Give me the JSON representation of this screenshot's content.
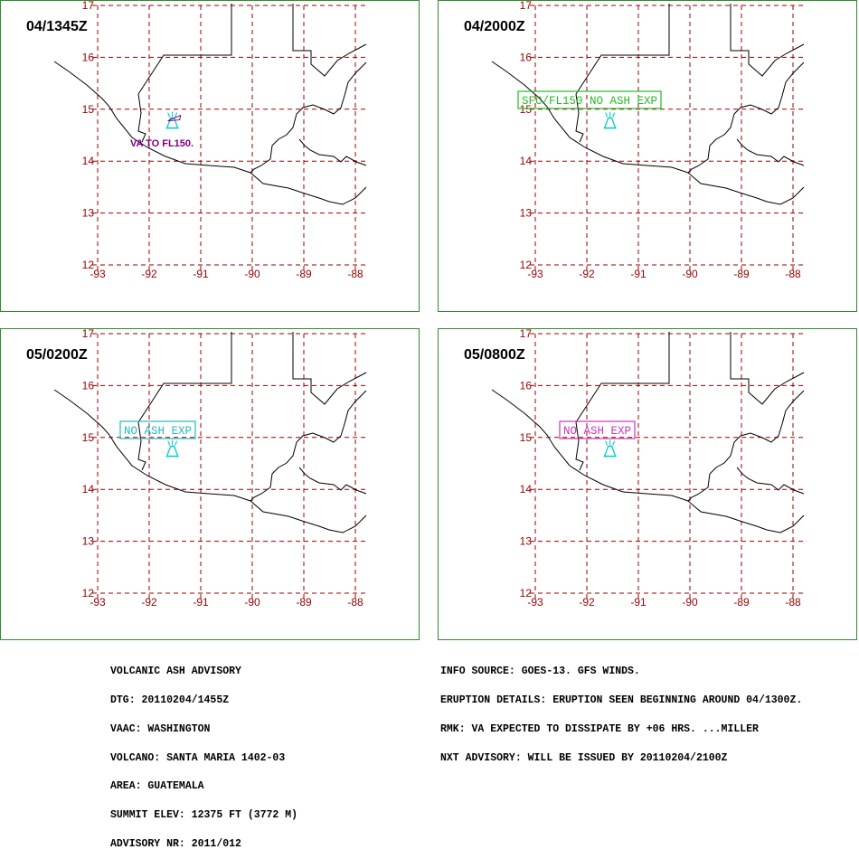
{
  "panels": [
    {
      "time": "04/1345Z",
      "label": "VA TO FL150.",
      "label_color": "#800080",
      "label_boxed": false
    },
    {
      "time": "04/2000Z",
      "label": "SFC/FL150 NO ASH EXP",
      "label_color": "#22bb22",
      "label_boxed": true
    },
    {
      "time": "05/0200Z",
      "label": "NO ASH EXP",
      "label_color": "#22bbbb",
      "label_boxed": true
    },
    {
      "time": "05/0800Z",
      "label": "NO ASH EXP",
      "label_color": "#cc33bb",
      "label_boxed": true
    }
  ],
  "map": {
    "lon_ticks": [
      "-93",
      "-92",
      "-91",
      "-90",
      "-89",
      "-88"
    ],
    "lat_ticks": [
      "17",
      "16",
      "15",
      "14",
      "13",
      "12"
    ],
    "grid_color": "#990000",
    "volcano_lon": -91.55,
    "volcano_lat": 14.76,
    "volcano_color": "#00cccc"
  },
  "advisory": {
    "left_lines": [
      "VOLCANIC ASH ADVISORY",
      "DTG: 20110204/1455Z",
      "VAAC: WASHINGTON",
      "VOLCANO: SANTA MARIA 1402-03",
      "AREA: GUATEMALA",
      "SUMMIT ELEV: 12375 FT (3772 M)",
      "ADVISORY NR: 2011/012"
    ],
    "right_lines": [
      "INFO SOURCE: GOES-13. GFS WINDS.",
      "ERUPTION DETAILS: ERUPTION SEEN BEGINNING AROUND 04/1300Z.",
      "RMK: VA EXPECTED TO DISSIPATE BY +06 HRS. ...MILLER",
      "NXT ADVISORY: WILL BE ISSUED BY 20110204/2100Z"
    ]
  }
}
